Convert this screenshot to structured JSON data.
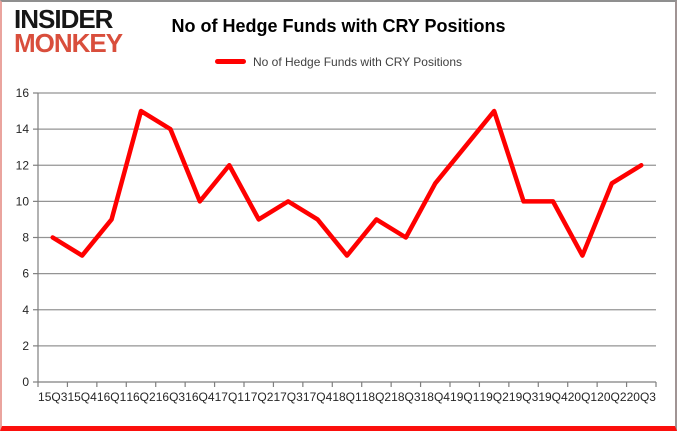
{
  "logo": {
    "line1": "INSIDER",
    "line2": "MONKEY"
  },
  "header": {
    "title": "No of Hedge Funds with CRY Positions"
  },
  "legend": {
    "label": "No of Hedge Funds with CRY Positions"
  },
  "colors": {
    "series": "#ff0000",
    "grid": "#949494",
    "axis": "#7f7f7f",
    "tick_label": "#262626",
    "legend_text": "#404040",
    "title": "#000000",
    "logo_black": "#161616",
    "logo_red": "#d94e3c"
  },
  "chart_data": {
    "type": "line",
    "title": "No of Hedge Funds with CRY Positions",
    "xlabel": "",
    "ylabel": "",
    "categories": [
      "15Q3",
      "15Q4",
      "16Q1",
      "16Q2",
      "16Q3",
      "16Q4",
      "17Q1",
      "17Q2",
      "17Q3",
      "17Q4",
      "18Q1",
      "18Q2",
      "18Q3",
      "18Q4",
      "19Q1",
      "19Q2",
      "19Q3",
      "19Q4",
      "20Q1",
      "20Q2",
      "20Q3"
    ],
    "series": [
      {
        "name": "No of Hedge Funds with CRY Positions",
        "values": [
          8,
          7,
          9,
          15,
          14,
          10,
          12,
          9,
          10,
          9,
          7,
          9,
          8,
          11,
          13,
          15,
          10,
          10,
          7,
          11,
          12
        ]
      }
    ],
    "ylim": [
      0,
      16
    ],
    "yticks": [
      0,
      2,
      4,
      6,
      8,
      10,
      12,
      14,
      16
    ],
    "grid": true,
    "legend_position": "top"
  }
}
